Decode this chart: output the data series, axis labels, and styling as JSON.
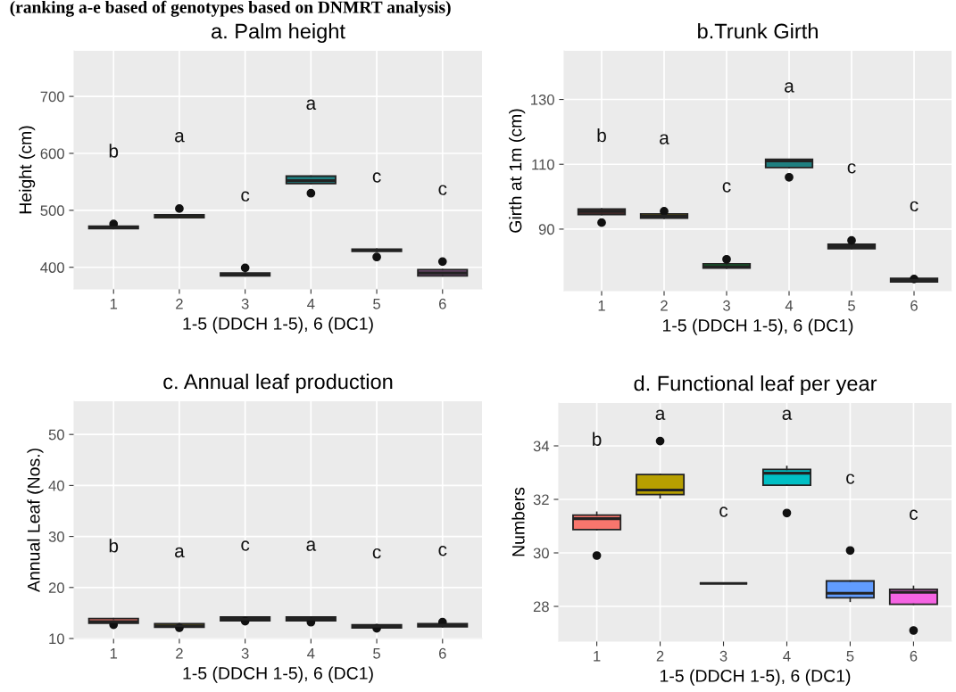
{
  "chart_data": [
    {
      "type": "box",
      "title": "a. Palm height",
      "subtitle": "(ranking a-e based of genotypes based on DNMRT analysis)",
      "xlabel": "1-5 (DDCH 1-5), 6 (DC1)",
      "ylabel": "Height (cm)",
      "categories": [
        "1",
        "2",
        "3",
        "4",
        "5",
        "6"
      ],
      "colors": [
        "#F8766D",
        "#B79F00",
        "#00BA38",
        "#1F7F80",
        "#619CFF",
        "#7A4F7A"
      ],
      "boxes": [
        {
          "low": 468,
          "q1": 468,
          "median": 470,
          "q3": 472,
          "high": 472,
          "outliers": [
            476
          ]
        },
        {
          "low": 487,
          "q1": 487,
          "median": 490,
          "q3": 492,
          "high": 492,
          "outliers": [
            503
          ]
        },
        {
          "low": 385,
          "q1": 385,
          "median": 387,
          "q3": 390,
          "high": 390,
          "outliers": [
            399
          ]
        },
        {
          "low": 547,
          "q1": 547,
          "median": 552,
          "q3": 560,
          "high": 560,
          "outliers": [
            530
          ]
        },
        {
          "low": 428,
          "q1": 428,
          "median": 430,
          "q3": 432,
          "high": 432,
          "outliers": [
            418
          ]
        },
        {
          "low": 385,
          "q1": 385,
          "median": 390,
          "q3": 396,
          "high": 396,
          "outliers": [
            410
          ]
        }
      ],
      "ylim": [
        362,
        780
      ],
      "yticks": [
        400,
        500,
        600,
        700
      ],
      "grid": true,
      "annotations": [
        "b",
        "a",
        "c",
        "a",
        "c",
        "c"
      ]
    },
    {
      "type": "box",
      "title": "b.Trunk Girth",
      "xlabel": "1-5 (DDCH 1-5), 6 (DC1)",
      "ylabel": "Girth at 1m (cm)",
      "categories": [
        "1",
        "2",
        "3",
        "4",
        "5",
        "6"
      ],
      "colors": [
        "#4A2A2A",
        "#B79F00",
        "#00BA38",
        "#1F7F80",
        "#619CFF",
        "#F564E3"
      ],
      "boxes": [
        {
          "low": 94.5,
          "q1": 94.5,
          "median": 95.5,
          "q3": 96.2,
          "high": 96.2,
          "outliers": [
            92
          ]
        },
        {
          "low": 93.4,
          "q1": 93.4,
          "median": 94,
          "q3": 94.7,
          "high": 94.7,
          "outliers": [
            95.5
          ]
        },
        {
          "low": 78,
          "q1": 78,
          "median": 78.5,
          "q3": 79.3,
          "high": 79.3,
          "outliers": [
            80.7
          ]
        },
        {
          "low": 109,
          "q1": 109,
          "median": 111,
          "q3": 111.5,
          "high": 111.5,
          "outliers": [
            106
          ]
        },
        {
          "low": 84,
          "q1": 84,
          "median": 84.6,
          "q3": 85.3,
          "high": 85.3,
          "outliers": [
            86.5
          ]
        },
        {
          "low": 73.7,
          "q1": 73.7,
          "median": 74.2,
          "q3": 74.8,
          "high": 74.8,
          "outliers": [
            74.6
          ]
        }
      ],
      "ylim": [
        71,
        145
      ],
      "yticks": [
        90,
        110,
        130
      ],
      "grid": true,
      "annotations": [
        "b",
        "a",
        "c",
        "a",
        "c",
        "c"
      ]
    },
    {
      "type": "box",
      "title": "c. Annual leaf production",
      "xlabel": "1-5 (DDCH 1-5), 6 (DC1)",
      "ylabel": "Annual Leaf (Nos.)",
      "categories": [
        "1",
        "2",
        "3",
        "4",
        "5",
        "6"
      ],
      "colors": [
        "#F8766D",
        "#B79F00",
        "#00BA38",
        "#00BFC4",
        "#619CFF",
        "#F564E3"
      ],
      "boxes": [
        {
          "low": 13.0,
          "q1": 13.0,
          "median": 13.3,
          "q3": 13.9,
          "high": 13.9,
          "outliers": [
            12.7
          ]
        },
        {
          "low": 12.2,
          "q1": 12.2,
          "median": 12.5,
          "q3": 12.9,
          "high": 12.9,
          "outliers": [
            12.1
          ]
        },
        {
          "low": 13.5,
          "q1": 13.5,
          "median": 13.8,
          "q3": 14.2,
          "high": 14.2,
          "outliers": [
            13.4
          ]
        },
        {
          "low": 13.5,
          "q1": 13.5,
          "median": 13.8,
          "q3": 14.2,
          "high": 14.2,
          "outliers": [
            13.2
          ]
        },
        {
          "low": 12.1,
          "q1": 12.1,
          "median": 12.4,
          "q3": 12.7,
          "high": 12.7,
          "outliers": [
            12.0
          ]
        },
        {
          "low": 12.3,
          "q1": 12.3,
          "median": 12.6,
          "q3": 12.9,
          "high": 12.9,
          "outliers": [
            13.2
          ]
        }
      ],
      "ylim": [
        10,
        56.5
      ],
      "yticks": [
        10,
        20,
        30,
        40,
        50
      ],
      "grid": true,
      "annotations": [
        "b",
        "a",
        "c",
        "a",
        "c",
        "c"
      ]
    },
    {
      "type": "box",
      "title": "d. Functional leaf per year",
      "xlabel": "1-5 (DDCH 1-5), 6 (DC1)",
      "ylabel": "Numbers",
      "categories": [
        "1",
        "2",
        "3",
        "4",
        "5",
        "6"
      ],
      "colors": [
        "#F8766D",
        "#B79F00",
        "#222222",
        "#00BFC4",
        "#619CFF",
        "#F564E3"
      ],
      "boxes": [
        {
          "low": 30.87,
          "q1": 30.87,
          "median": 31.28,
          "q3": 31.41,
          "high": 31.52,
          "outliers": [
            29.9
          ]
        },
        {
          "low": 32.06,
          "q1": 32.18,
          "median": 32.35,
          "q3": 32.93,
          "high": 32.93,
          "outliers": [
            34.18
          ]
        },
        {
          "low": 28.86,
          "q1": 28.86,
          "median": 28.86,
          "q3": 28.86,
          "high": 28.86
        },
        {
          "low": 32.53,
          "q1": 32.53,
          "median": 32.98,
          "q3": 33.12,
          "high": 33.23,
          "outliers": [
            31.49
          ]
        },
        {
          "low": 28.19,
          "q1": 28.32,
          "median": 28.49,
          "q3": 28.95,
          "high": 28.95,
          "outliers": [
            30.09
          ]
        },
        {
          "low": 28.08,
          "q1": 28.08,
          "median": 28.53,
          "q3": 28.64,
          "high": 28.75,
          "outliers": [
            27.1
          ]
        }
      ],
      "ylim": [
        26.7,
        35.6
      ],
      "yticks": [
        28,
        30,
        32,
        34
      ],
      "grid": true,
      "annotations": [
        "b",
        "a",
        "c",
        "a",
        "c",
        "c"
      ]
    }
  ]
}
